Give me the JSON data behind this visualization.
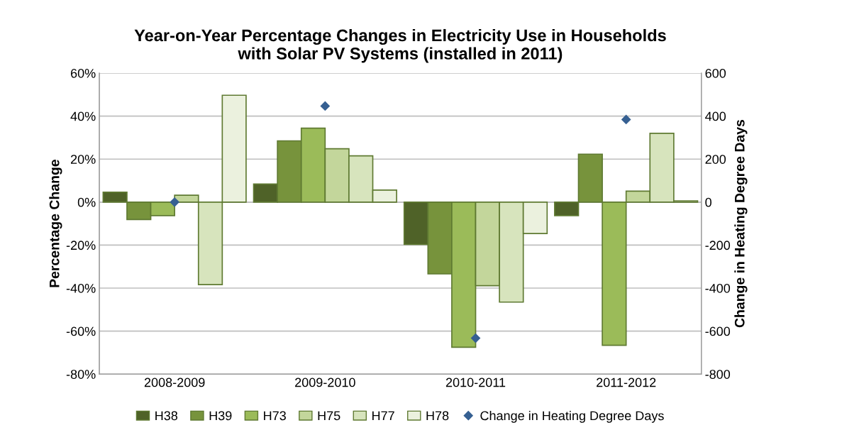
{
  "chart_data": {
    "type": "bar",
    "title": "Year-on-Year Percentage Changes in Electricity Use in Households\nwith Solar PV Systems (installed in 2011)",
    "ylabel": "Percentage Change",
    "y2label": "Change in Heating Degree Days",
    "categories": [
      "2008-2009",
      "2009-2010",
      "2010-2011",
      "2011-2012"
    ],
    "series": [
      {
        "name": "H38",
        "color": "#4f6228",
        "values": [
          4.6,
          8.4,
          -19.7,
          -6.3
        ]
      },
      {
        "name": "H39",
        "color": "#77933c",
        "values": [
          -8.1,
          28.5,
          -33.4,
          22.3
        ]
      },
      {
        "name": "H73",
        "color": "#9bbb59",
        "values": [
          -6.3,
          34.4,
          -67.5,
          -66.6
        ]
      },
      {
        "name": "H75",
        "color": "#c3d69b",
        "values": [
          3.2,
          24.8,
          -38.9,
          5.1
        ]
      },
      {
        "name": "H77",
        "color": "#d7e4bd",
        "values": [
          -38.4,
          21.5,
          -46.5,
          32.0
        ]
      },
      {
        "name": "H78",
        "color": "#ebf1de",
        "values": [
          49.7,
          5.6,
          -14.6,
          0.6
        ]
      },
      {
        "name": "Change in Heating Degree Days",
        "type": "scatter",
        "axis": "y2",
        "marker": "diamond",
        "color": "#366092",
        "values": [
          0,
          447,
          -633,
          384
        ]
      }
    ],
    "ylim": [
      -80,
      60
    ],
    "yticks": [
      {
        "value": -80,
        "label": "-80%"
      },
      {
        "value": -60,
        "label": "-60%"
      },
      {
        "value": -40,
        "label": "-40%"
      },
      {
        "value": -20,
        "label": "-20%"
      },
      {
        "value": 0,
        "label": "0%"
      },
      {
        "value": 20,
        "label": "20%"
      },
      {
        "value": 40,
        "label": "40%"
      },
      {
        "value": 60,
        "label": "60%"
      }
    ],
    "y2lim": [
      -800,
      600
    ],
    "y2ticks": [
      -800,
      -600,
      -400,
      -200,
      0,
      200,
      400,
      600
    ],
    "grid": "y",
    "legend": "bottom"
  }
}
